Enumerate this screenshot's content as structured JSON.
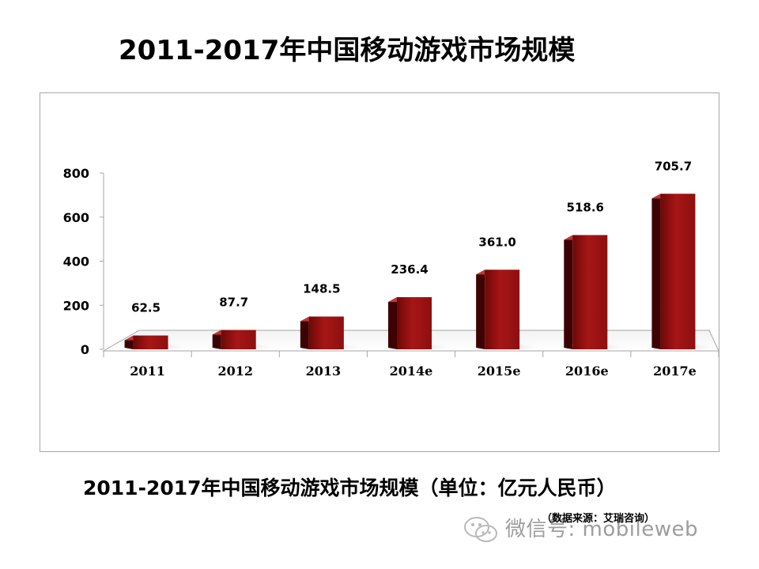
{
  "page": {
    "title": "2011-2017年中国移动游戏市场规模",
    "subtitle": "2011-2017年中国移动游戏市场规模（单位：亿元人民币）",
    "source": "（数据来源：艾瑞咨询）",
    "watermark": "微信号: mobileweb",
    "watermark_icon": "wechat-icon"
  },
  "chart_data": {
    "type": "bar",
    "categories": [
      "2011",
      "2012",
      "2013",
      "2014e",
      "2015e",
      "2016e",
      "2017e"
    ],
    "values": [
      62.5,
      87.7,
      148.5,
      236.4,
      361.0,
      518.6,
      705.7
    ],
    "value_labels": [
      "62.5",
      "87.7",
      "148.5",
      "236.4",
      "361.0",
      "518.6",
      "705.7"
    ],
    "title": "",
    "xlabel": "",
    "ylabel": "",
    "ylim": [
      0,
      800
    ],
    "yticks": [
      0,
      200,
      400,
      600,
      800
    ],
    "grid": false,
    "legend": "none",
    "style": "3d-column",
    "colors": {
      "bar_front": "#9b1111",
      "bar_dark": "#5a0606",
      "bar_side": "#3d0303",
      "bar_top": "#c43434",
      "axis": "#a6a6a6"
    }
  }
}
